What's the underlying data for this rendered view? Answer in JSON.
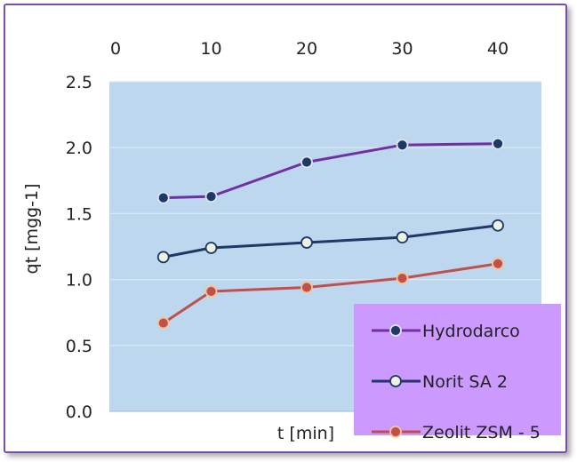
{
  "chart_data": {
    "type": "line",
    "xlabel": "t [min]",
    "ylabel": "qt [mgg-1]",
    "x_ticks": [
      "0",
      "10",
      "20",
      "30",
      "40"
    ],
    "y_ticks": [
      "0.0",
      "0.5",
      "1.0",
      "1.5",
      "2.0",
      "2.5"
    ],
    "xlim": [
      0,
      40
    ],
    "ylim": [
      0,
      2.5
    ],
    "x_axis_position": "top",
    "grid": "horizontal",
    "legend_position": "bottom-right",
    "x": [
      5,
      10,
      20,
      30,
      40
    ],
    "series": [
      {
        "name": "Hydrodarco",
        "values": [
          1.62,
          1.63,
          1.89,
          2.02,
          2.03
        ],
        "line_color": "#7030a0",
        "marker_fill": "#1f3864",
        "marker_edge": "#dbe4f0"
      },
      {
        "name": "Norit SA 2",
        "values": [
          1.17,
          1.24,
          1.28,
          1.32,
          1.41
        ],
        "line_color": "#1f3864",
        "marker_fill": "#eef2e4",
        "marker_edge": "#1f3864"
      },
      {
        "name": "Zeolit ZSM - 5",
        "values": [
          0.67,
          0.91,
          0.94,
          1.01,
          1.12
        ],
        "line_color": "#c0504d",
        "marker_fill": "#c0504d",
        "marker_edge": "#f5c490"
      }
    ],
    "colors": {
      "plot_background": "#bdd7ee",
      "legend_background": "#cc99ff",
      "gridline": "#d9e7f5",
      "frame_border": "#7a4fa8"
    }
  }
}
